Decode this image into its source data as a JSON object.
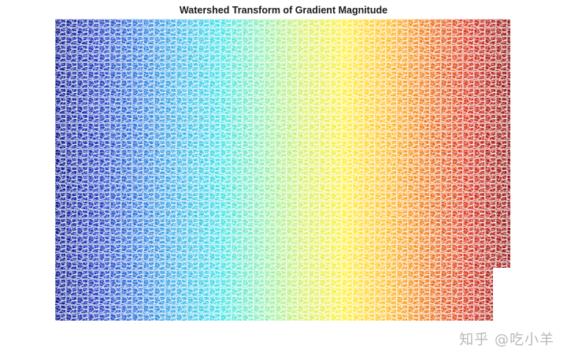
{
  "figure": {
    "title": "Watershed Transform of Gradient Magnitude",
    "colormap": "jet",
    "colormap_stops": [
      "#0a1a8c",
      "#1f3cc0",
      "#2f78e0",
      "#3fb6ea",
      "#3fe2e8",
      "#8ff0b4",
      "#d8f06a",
      "#fff03a",
      "#ffc02a",
      "#f07a1e",
      "#d8341e",
      "#8e1212"
    ],
    "ridge_line_color": "#ffffff",
    "background": "#ffffff"
  },
  "watermark": {
    "text": "知乎 @吃小羊"
  }
}
